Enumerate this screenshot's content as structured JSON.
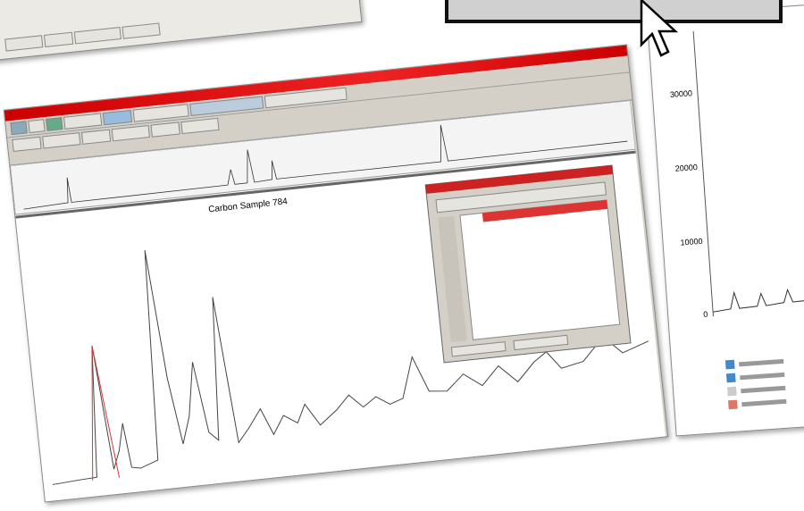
{
  "main_window": {
    "plot_title": "Carbon Sample 784"
  },
  "side_window": {
    "y_axis_labels": [
      "30000",
      "20000",
      "10000",
      "0"
    ]
  }
}
